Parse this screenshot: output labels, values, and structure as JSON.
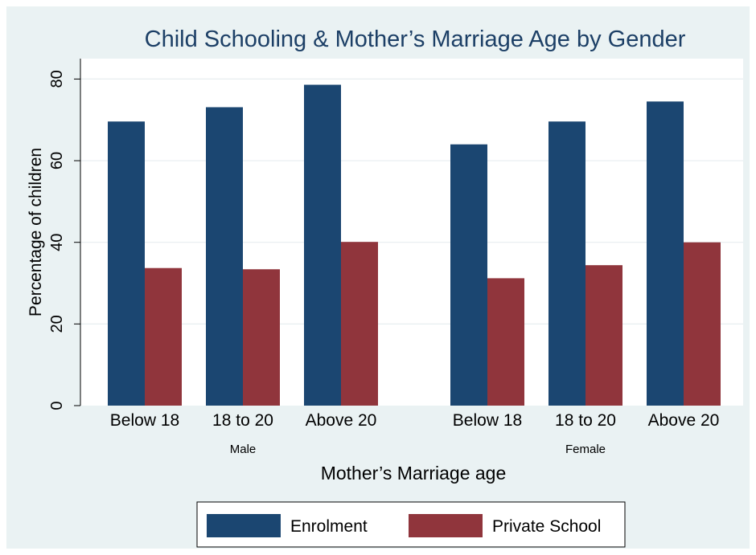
{
  "chart_data": {
    "type": "bar",
    "title": "Child Schooling & Mother’s Marriage Age by Gender",
    "xlabel": "Mother’s Marriage age",
    "ylabel": "Percentage of children",
    "ylim": [
      0,
      85
    ],
    "yticks": [
      "0",
      "20",
      "40",
      "60",
      "80"
    ],
    "grid": true,
    "legend_position": "bottom",
    "groups": [
      {
        "name": "Male",
        "categories": [
          "Below 18",
          "18 to 20",
          "Above 20"
        ],
        "series": [
          {
            "name": "Enrolment",
            "values": [
              69.6,
              73.1,
              78.6
            ]
          },
          {
            "name": "Private School",
            "values": [
              33.7,
              33.4,
              40.1
            ]
          }
        ]
      },
      {
        "name": "Female",
        "categories": [
          "Below 18",
          "18 to 20",
          "Above 20"
        ],
        "series": [
          {
            "name": "Enrolment",
            "values": [
              64.0,
              69.6,
              74.5
            ]
          },
          {
            "name": "Private School",
            "values": [
              31.2,
              34.4,
              40.0
            ]
          }
        ]
      }
    ],
    "colors": {
      "Enrolment": "#1b4671",
      "Private School": "#90353c"
    }
  }
}
